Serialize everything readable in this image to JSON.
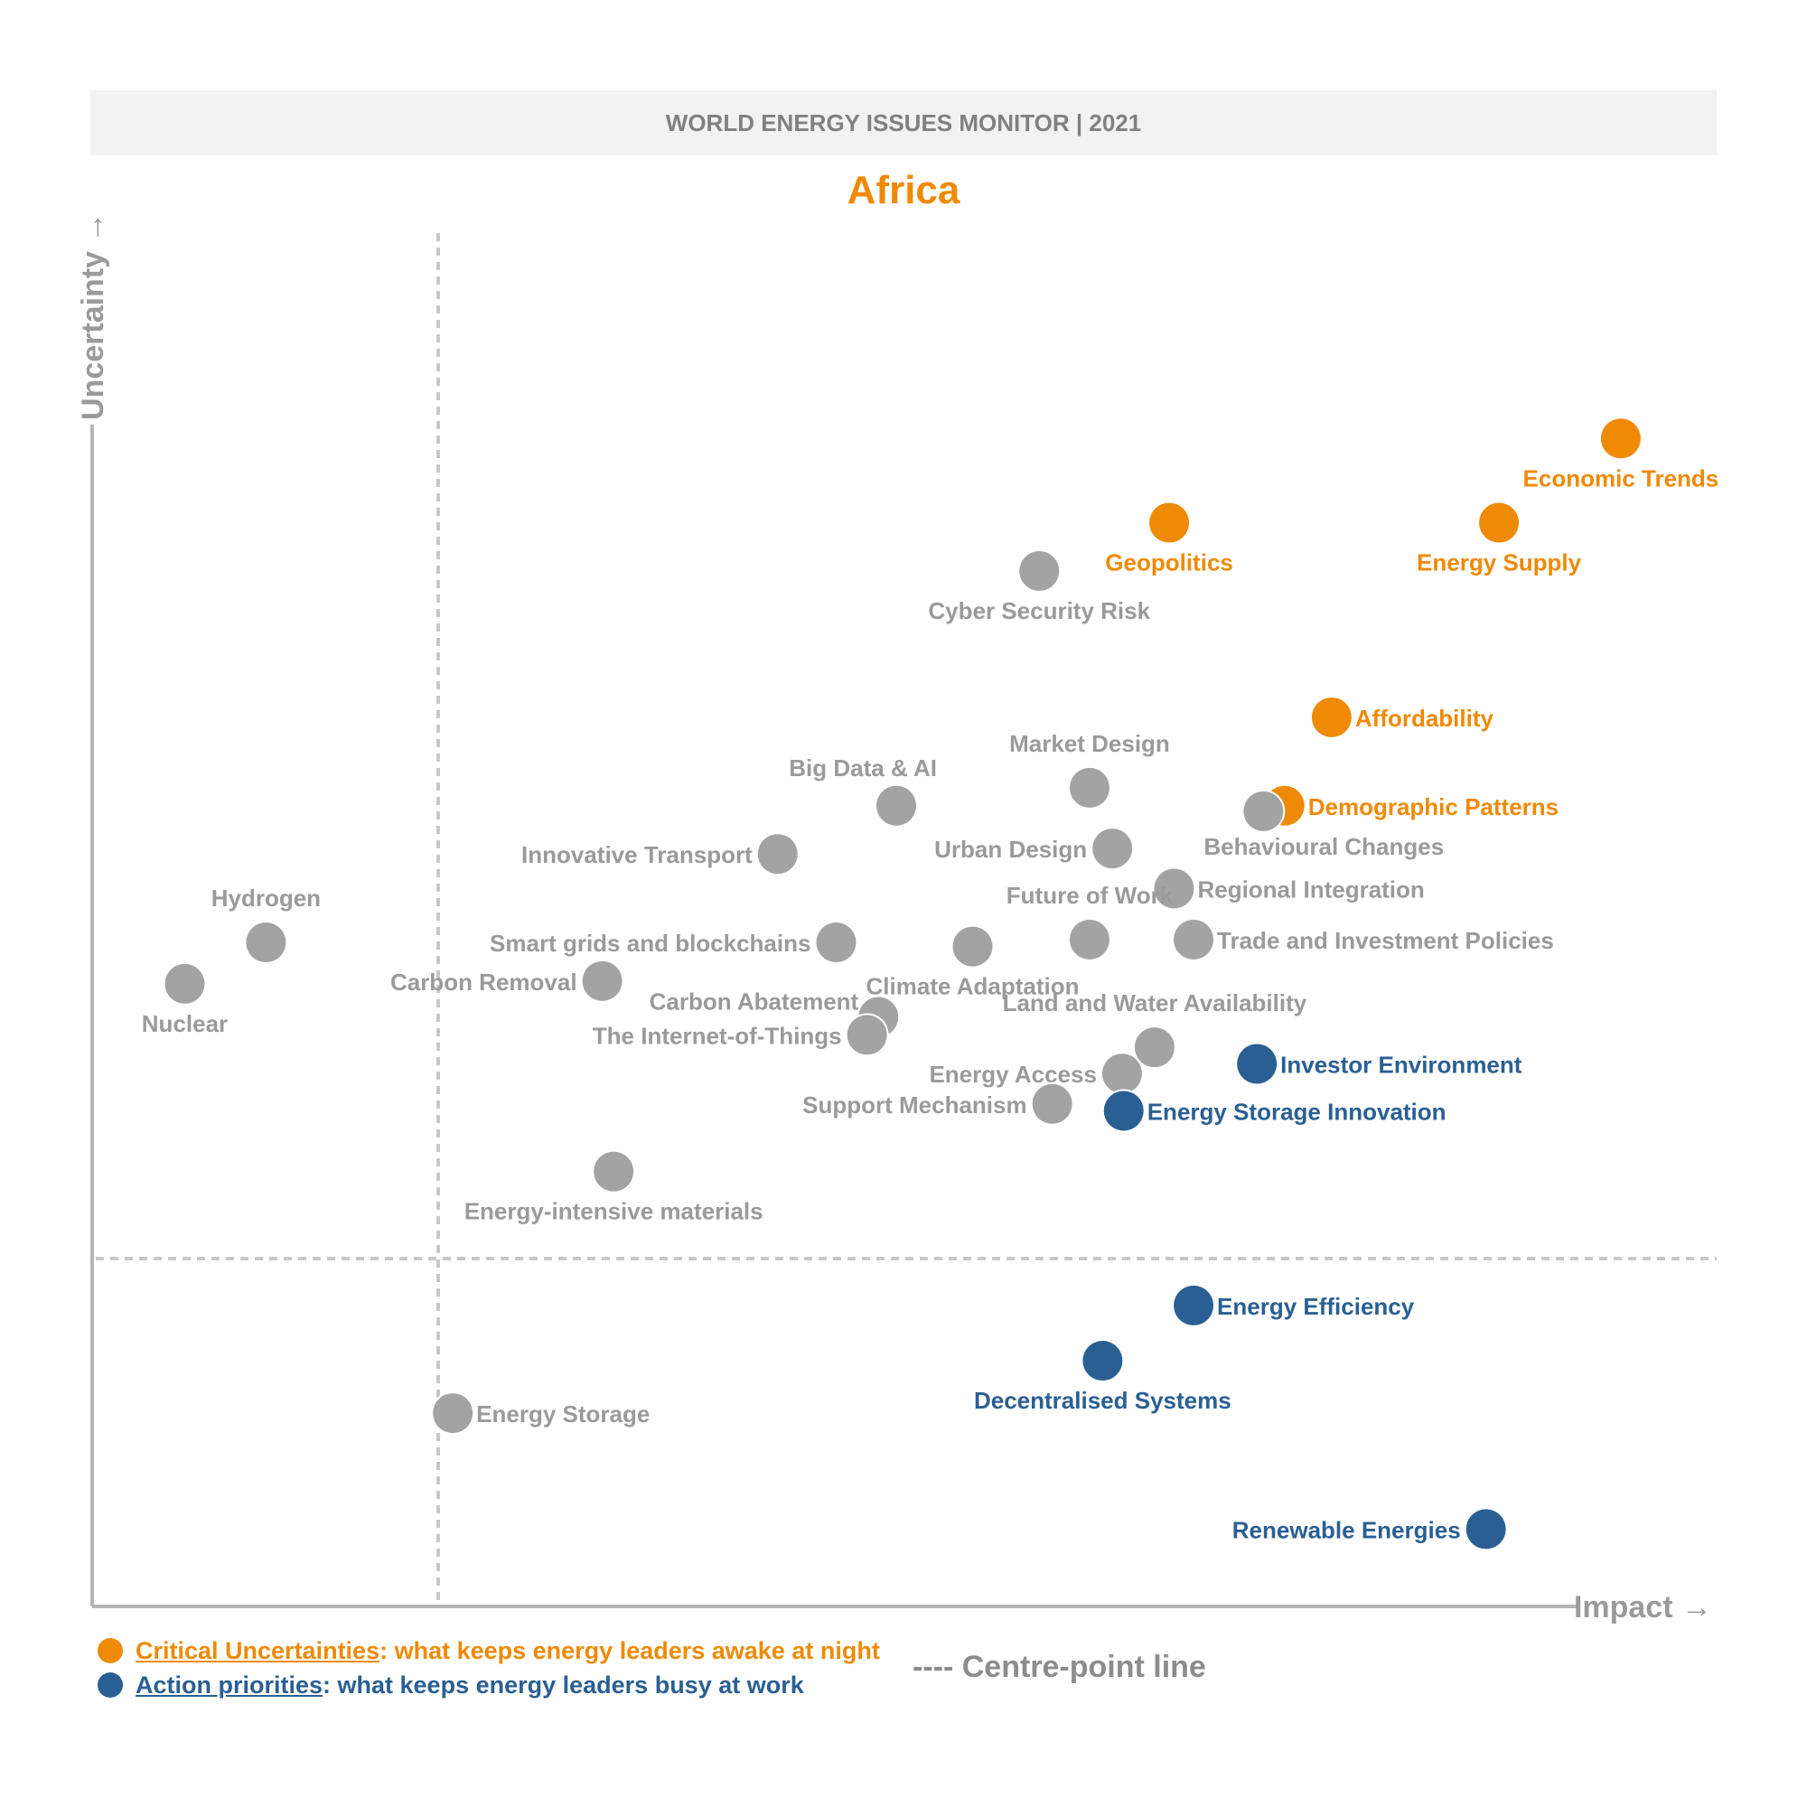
{
  "header": {
    "banner": "WORLD ENERGY ISSUES MONITOR | 2021"
  },
  "colors": {
    "critical": "#ef8a06",
    "action": "#2a5f93",
    "other": "#a3a3a3",
    "axis": "#b5b5b5",
    "text_gray": "#9a9a9a"
  },
  "legend": {
    "critical": {
      "name": "Critical Uncertainties",
      "desc": ": what keeps energy leaders awake at night"
    },
    "action": {
      "name": "Action priorities",
      "desc": ": what keeps energy leaders busy at work"
    },
    "centre_line": "---- Centre-point line"
  },
  "chart_data": {
    "type": "scatter",
    "title": "Africa",
    "xlabel": "Impact →",
    "ylabel": "Uncertainty →",
    "xlim": [
      0,
      100
    ],
    "ylim": [
      0,
      100
    ],
    "grid": false,
    "centre_point": {
      "x": 21.3,
      "y": 25.2
    },
    "points": [
      {
        "label": "Economic Trends",
        "x": 94.1,
        "y": 84.6,
        "group": "critical",
        "label_pos": "below"
      },
      {
        "label": "Energy Supply",
        "x": 86.6,
        "y": 78.5,
        "group": "critical",
        "label_pos": "below"
      },
      {
        "label": "Geopolitics",
        "x": 66.3,
        "y": 78.5,
        "group": "critical",
        "label_pos": "below"
      },
      {
        "label": "Affordability",
        "x": 76.3,
        "y": 64.4,
        "group": "critical",
        "label_pos": "right"
      },
      {
        "label": "Demographic Patterns",
        "x": 73.4,
        "y": 58.0,
        "group": "critical",
        "label_pos": "right"
      },
      {
        "label": "Cyber Security Risk",
        "x": 58.3,
        "y": 75.0,
        "group": "other",
        "label_pos": "below"
      },
      {
        "label": "Market Design",
        "x": 61.4,
        "y": 59.3,
        "group": "other",
        "label_pos": "above"
      },
      {
        "label": "Big Data & AI",
        "x": 49.5,
        "y": 58.0,
        "group": "other",
        "label_pos": "above-left"
      },
      {
        "label": "Behavioural Changes",
        "x": 72.1,
        "y": 57.6,
        "group": "other",
        "label_pos": "below-right"
      },
      {
        "label": "Innovative Transport",
        "x": 42.2,
        "y": 54.5,
        "group": "other",
        "label_pos": "left"
      },
      {
        "label": "Urban Design",
        "x": 62.8,
        "y": 54.9,
        "group": "other",
        "label_pos": "left"
      },
      {
        "label": "Regional Integration",
        "x": 66.6,
        "y": 52.0,
        "group": "other",
        "label_pos": "right"
      },
      {
        "label": "Hydrogen",
        "x": 10.7,
        "y": 48.1,
        "group": "other",
        "label_pos": "above"
      },
      {
        "label": "Smart grids and blockchains",
        "x": 45.8,
        "y": 48.1,
        "group": "other",
        "label_pos": "left"
      },
      {
        "label": "Climate Adaptation",
        "x": 54.2,
        "y": 47.8,
        "group": "other",
        "label_pos": "below"
      },
      {
        "label": "Future of Work",
        "x": 61.4,
        "y": 48.3,
        "group": "other",
        "label_pos": "above"
      },
      {
        "label": "Trade and Investment Policies",
        "x": 67.8,
        "y": 48.3,
        "group": "other",
        "label_pos": "right"
      },
      {
        "label": "Nuclear",
        "x": 5.7,
        "y": 45.1,
        "group": "other",
        "label_pos": "below"
      },
      {
        "label": "Carbon Removal",
        "x": 31.4,
        "y": 45.3,
        "group": "other",
        "label_pos": "left"
      },
      {
        "label": "Carbon Abatement",
        "x": 48.4,
        "y": 42.7,
        "group": "other",
        "label_pos": "left-above"
      },
      {
        "label": "The Internet-of-Things",
        "x": 47.7,
        "y": 41.4,
        "group": "other",
        "label_pos": "left"
      },
      {
        "label": "Land and Water Availability",
        "x": 65.4,
        "y": 40.5,
        "group": "other",
        "label_pos": "above"
      },
      {
        "label": "Energy Access",
        "x": 63.4,
        "y": 38.6,
        "group": "other",
        "label_pos": "left"
      },
      {
        "label": "Investor Environment",
        "x": 71.7,
        "y": 39.3,
        "group": "action",
        "label_pos": "right"
      },
      {
        "label": "Support Mechanism",
        "x": 59.1,
        "y": 36.4,
        "group": "other",
        "label_pos": "left"
      },
      {
        "label": "Energy Storage Innovation",
        "x": 63.5,
        "y": 35.9,
        "group": "action",
        "label_pos": "right"
      },
      {
        "label": "Energy-intensive materials",
        "x": 32.1,
        "y": 31.5,
        "group": "other",
        "label_pos": "below"
      },
      {
        "label": "Energy Efficiency",
        "x": 67.8,
        "y": 21.8,
        "group": "action",
        "label_pos": "right"
      },
      {
        "label": "Decentralised Systems",
        "x": 62.2,
        "y": 17.8,
        "group": "action",
        "label_pos": "below"
      },
      {
        "label": "Energy Storage",
        "x": 22.2,
        "y": 14.0,
        "group": "other",
        "label_pos": "right"
      },
      {
        "label": "Renewable Energies",
        "x": 85.8,
        "y": 5.6,
        "group": "action",
        "label_pos": "left"
      }
    ]
  }
}
